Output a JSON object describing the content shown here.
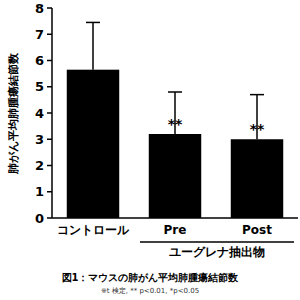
{
  "chart_data": {
    "type": "bar",
    "title": "図1：マウスの肺がん平均肺腫瘍結節数",
    "subtitle": "※t 検定, ** p<0.01, *p<0.05",
    "y_label": "肺がん平均肺腫瘍結節数",
    "categories": [
      "コントロール",
      "Pre",
      "Post"
    ],
    "values": [
      5.65,
      3.2,
      3.0
    ],
    "errors": [
      1.8,
      1.6,
      1.7
    ],
    "color": "#000000",
    "ylim": [
      0,
      8
    ],
    "yticks": [
      0,
      1,
      2,
      3,
      4,
      5,
      6,
      7,
      8
    ],
    "grid": false,
    "annotations": [
      {
        "text": "**",
        "category": "Pre"
      },
      {
        "text": "**",
        "category": "Post"
      }
    ],
    "group_label": {
      "text": "ユーグレナ抽出物",
      "categories": [
        "Pre",
        "Post"
      ]
    }
  }
}
